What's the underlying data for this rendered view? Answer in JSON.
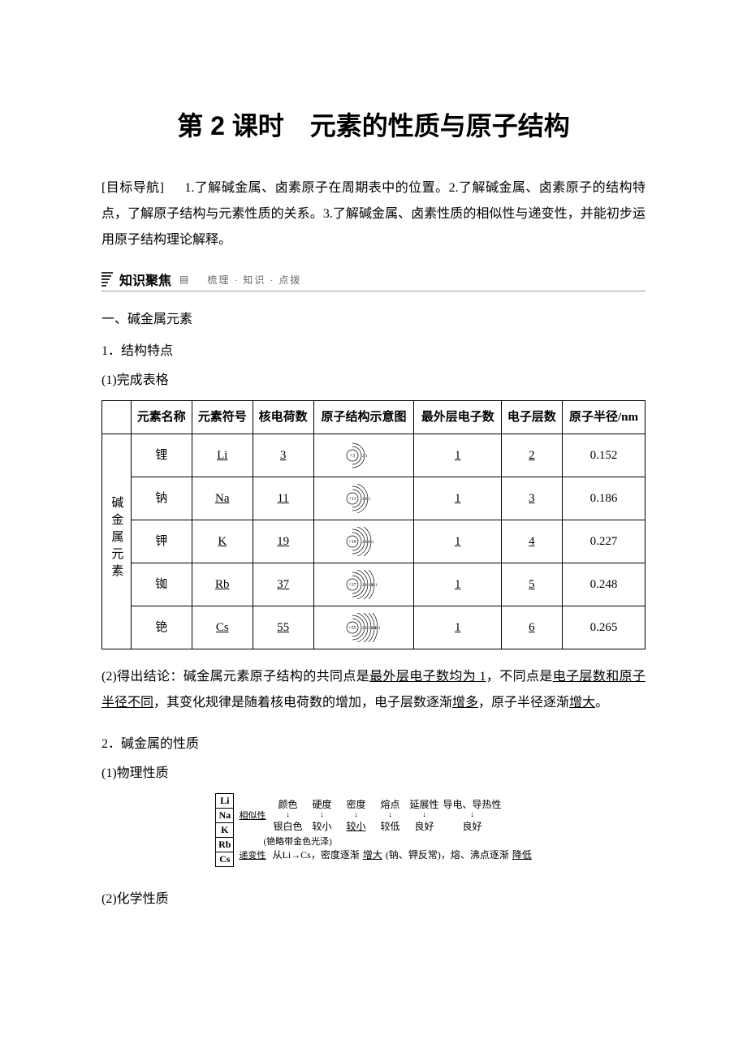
{
  "title": "第 2 课时　元素的性质与原子结构",
  "objectives_label": "[目标导航]",
  "objectives_text": "1.了解碱金属、卤素原子在周期表中的位置。2.了解碱金属、卤素原子的结构特点，了解原子结构与元素性质的关系。3.了解碱金属、卤素性质的相似性与递变性，并能初步运用原子结构理论解释。",
  "banner": {
    "label": "知识聚焦",
    "sub": "梳理 · 知识 · 点拨"
  },
  "section1": {
    "title": "一、碱金属元素",
    "h2_1": "1．结构特点",
    "h3_1": "(1)完成表格",
    "table": {
      "row_label": "碱金属元素",
      "headers": [
        "元素名称",
        "元素符号",
        "核电荷数",
        "原子结构示意图",
        "最外层电子数",
        "电子层数",
        "原子半径/nm"
      ],
      "rows": [
        {
          "name": "锂",
          "sym": "Li",
          "z": "3",
          "shells": [
            2,
            1
          ],
          "outer": "1",
          "layers": "2",
          "radius": "0.152"
        },
        {
          "name": "钠",
          "sym": "Na",
          "z": "11",
          "shells": [
            2,
            8,
            1
          ],
          "outer": "1",
          "layers": "3",
          "radius": "0.186"
        },
        {
          "name": "钾",
          "sym": "K",
          "z": "19",
          "shells": [
            2,
            8,
            8,
            1
          ],
          "outer": "1",
          "layers": "4",
          "radius": "0.227"
        },
        {
          "name": "铷",
          "sym": "Rb",
          "z": "37",
          "shells": [
            2,
            8,
            18,
            8,
            1
          ],
          "outer": "1",
          "layers": "5",
          "radius": "0.248"
        },
        {
          "name": "铯",
          "sym": "Cs",
          "z": "55",
          "shells": [
            2,
            8,
            18,
            18,
            8,
            1
          ],
          "outer": "1",
          "layers": "6",
          "radius": "0.265"
        }
      ]
    },
    "conclusion_prefix": "(2)得出结论：碱金属元素原子结构的共同点是",
    "conclusion_u1": "最外层电子数均为 1",
    "conclusion_mid1": "，不同点是",
    "conclusion_u2": "电子层数和原子半径不同",
    "conclusion_mid2": "，其变化规律是随着核电荷数的增加，电子层数逐渐",
    "conclusion_u3": "增多",
    "conclusion_mid3": "，原子半径逐渐",
    "conclusion_u4": "增大",
    "conclusion_end": "。",
    "h2_2": "2．碱金属的性质",
    "h3_2": "(1)物理性质",
    "phys": {
      "elements": [
        "Li",
        "Na",
        "K",
        "Rb",
        "Cs"
      ],
      "similar_label": "相似性",
      "headers": [
        "颜色",
        "硬度",
        "密度",
        "熔点",
        "延展性",
        "导电、导热性"
      ],
      "values": [
        "银白色",
        "较小",
        "较小",
        "较低",
        "良好",
        "良好"
      ],
      "value_underline_idx": 2,
      "note1": "(铯略带金色光泽)",
      "trend_label": "递变性",
      "trend_text_pre": "从Li→Cs，密度逐渐",
      "trend_u1": "增大",
      "trend_text_mid": "(钠、钾反常)，熔、沸点逐渐",
      "trend_u2": "降低"
    },
    "h3_3": "(2)化学性质"
  },
  "colors": {
    "text": "#000000",
    "bg": "#ffffff",
    "border": "#000000",
    "sub": "#666666",
    "banner_line": "#999999"
  }
}
